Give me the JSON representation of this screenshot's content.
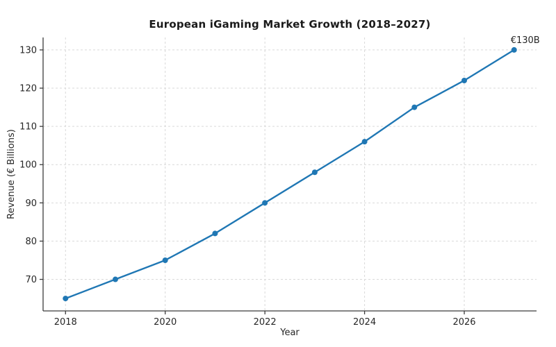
{
  "chart_data": {
    "type": "line",
    "title": "European iGaming Market Growth (2018–2027)",
    "xlabel": "Year",
    "ylabel": "Revenue (€ Billions)",
    "x": [
      2018,
      2019,
      2020,
      2021,
      2022,
      2023,
      2024,
      2025,
      2026,
      2027
    ],
    "series": [
      {
        "name": "Revenue",
        "values": [
          65,
          70,
          75,
          82,
          90,
          98,
          106,
          115,
          122,
          130
        ]
      }
    ],
    "xticks": [
      2018,
      2020,
      2022,
      2024,
      2026
    ],
    "yticks": [
      70,
      80,
      90,
      100,
      110,
      120,
      130
    ],
    "xlim": [
      2017.55,
      2027.45
    ],
    "ylim": [
      61.75,
      133.25
    ],
    "grid": true,
    "legend": "none",
    "line_color": "#1f77b4",
    "grid_color": "#d9d9d9",
    "spine_color": "#3b3b3b",
    "annotation": {
      "text": "€130B",
      "x": 2027,
      "y": 130
    }
  }
}
